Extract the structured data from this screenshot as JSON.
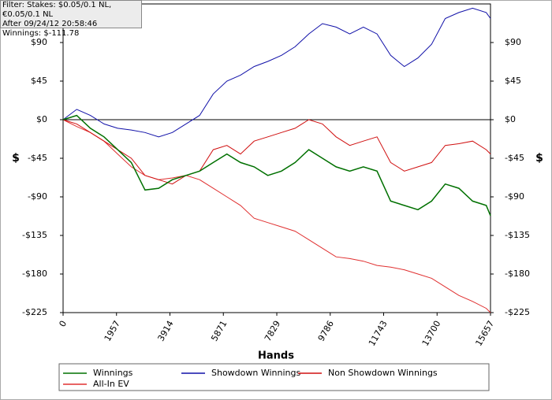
{
  "chart_data": {
    "type": "line",
    "annotations": [
      "Filter: Stakes: $0.05/0.1 NL,€0.05/0.1 NL",
      "After 09/24/12 20:58:46",
      "Winnings: $-111.78"
    ],
    "x_label": "Hands",
    "y_label": "$",
    "x": [
      0,
      500,
      1000,
      1500,
      2000,
      2500,
      3000,
      3500,
      4000,
      4500,
      5000,
      5500,
      6000,
      6500,
      7000,
      7500,
      8000,
      8500,
      9000,
      9500,
      10000,
      10500,
      11000,
      11500,
      12000,
      12500,
      13000,
      13500,
      14000,
      14500,
      15000,
      15500,
      15657
    ],
    "xlim": [
      0,
      15657
    ],
    "xticks": [
      0,
      1957,
      3914,
      5871,
      7829,
      9786,
      11743,
      13700,
      15657
    ],
    "ylim": [
      -225,
      135
    ],
    "yticks": [
      {
        "value": -225,
        "label": "-$225"
      },
      {
        "value": -180,
        "label": "-$180"
      },
      {
        "value": -135,
        "label": "-$135"
      },
      {
        "value": -90,
        "label": "-$90"
      },
      {
        "value": -45,
        "label": "-$45"
      },
      {
        "value": 0,
        "label": "$0"
      },
      {
        "value": 45,
        "label": "$45"
      },
      {
        "value": 90,
        "label": "$90"
      }
    ],
    "zero_line": true,
    "legend": "bottom",
    "series": [
      {
        "name": "Winnings",
        "color": "#007000",
        "values": [
          0,
          5,
          -10,
          -20,
          -35,
          -50,
          -82,
          -80,
          -70,
          -65,
          -60,
          -50,
          -40,
          -50,
          -55,
          -65,
          -60,
          -50,
          -35,
          -45,
          -55,
          -60,
          -55,
          -60,
          -95,
          -100,
          -105,
          -95,
          -75,
          -80,
          -95,
          -100,
          -112
        ]
      },
      {
        "name": "Showdown Winnings",
        "color": "#1010a8",
        "values": [
          0,
          12,
          5,
          -5,
          -10,
          -12,
          -15,
          -20,
          -15,
          -5,
          5,
          30,
          45,
          52,
          62,
          68,
          75,
          85,
          100,
          112,
          108,
          100,
          108,
          100,
          75,
          62,
          72,
          88,
          118,
          125,
          130,
          125,
          118
        ]
      },
      {
        "name": "Non Showdown Winnings",
        "color": "#d01010",
        "values": [
          0,
          -5,
          -15,
          -25,
          -35,
          -45,
          -65,
          -70,
          -75,
          -65,
          -60,
          -35,
          -30,
          -40,
          -25,
          -20,
          -15,
          -10,
          0,
          -5,
          -20,
          -30,
          -25,
          -20,
          -50,
          -60,
          -55,
          -50,
          -30,
          -28,
          -25,
          -35,
          -40
        ]
      },
      {
        "name": "All-In EV",
        "color": "#e03030",
        "values": [
          0,
          -8,
          -15,
          -25,
          -40,
          -55,
          -65,
          -70,
          -68,
          -65,
          -70,
          -80,
          -90,
          -100,
          -115,
          -120,
          -125,
          -130,
          -140,
          -150,
          -160,
          -162,
          -165,
          -170,
          -172,
          -175,
          -180,
          -185,
          -195,
          -205,
          -212,
          -220,
          -225
        ]
      }
    ]
  }
}
